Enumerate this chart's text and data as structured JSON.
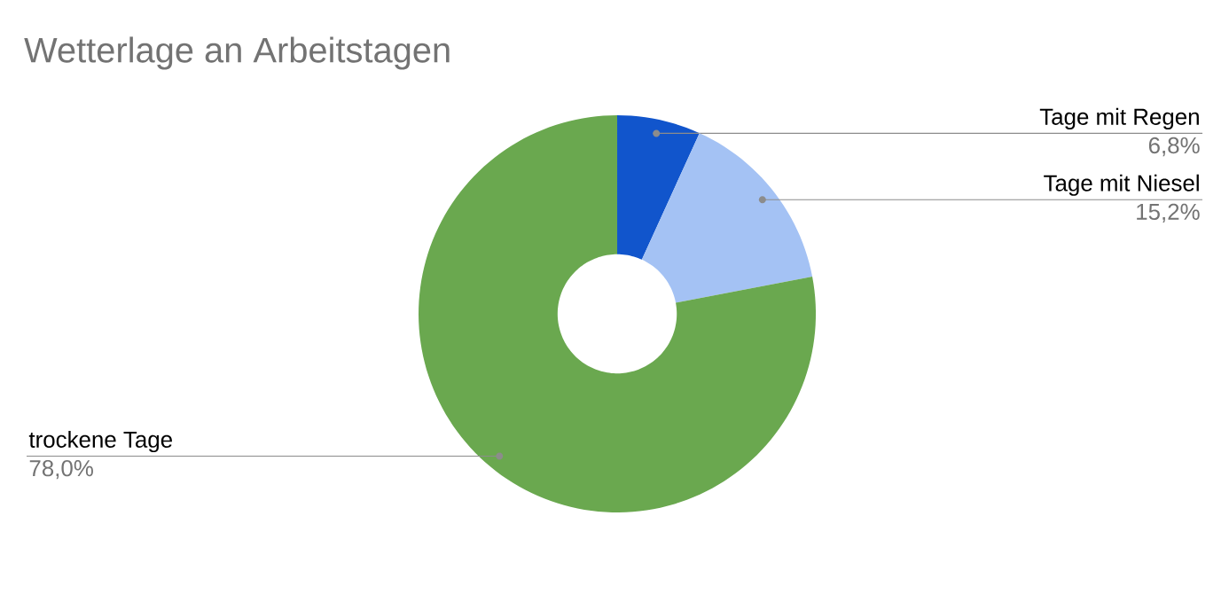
{
  "chart_data": {
    "type": "donut",
    "title": "Wetterlage an Arbeitstagen",
    "categories": [
      "Tage mit Regen",
      "Tage mit Niesel",
      "trockene Tage"
    ],
    "values": [
      6.8,
      15.2,
      78.0
    ],
    "value_labels": [
      "6,8%",
      "15,2%",
      "78,0%"
    ],
    "colors": [
      "#1155cc",
      "#a4c2f4",
      "#6aa84f"
    ],
    "legend": false
  }
}
